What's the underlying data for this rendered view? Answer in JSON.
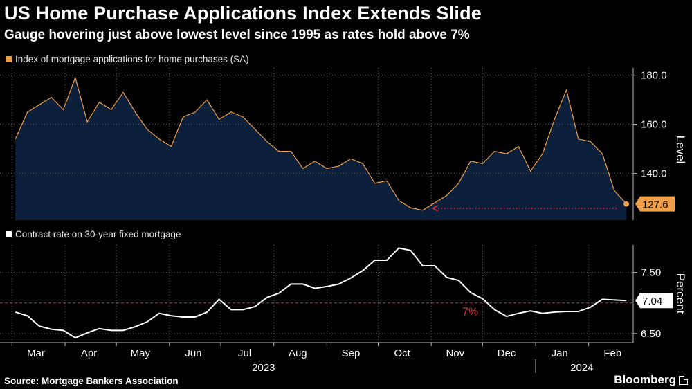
{
  "title": "US Home Purchase Applications Index Extends Slide",
  "subtitle": "Gauge hovering just above lowest level since 1995 as rates hold above 7%",
  "source": "Source: Mortgage Bankers Association",
  "brand": "Bloomberg",
  "colors": {
    "background": "#000000",
    "purchase_line": "#f0a04b",
    "purchase_fill": "#0c1f3b",
    "rate_line": "#ffffff",
    "reference": "#e0303a",
    "grid": "#666666"
  },
  "chart_data": [
    {
      "type": "area",
      "legend": "Index of mortgage applications for home purchases (SA)",
      "ylabel": "Level",
      "ylim": [
        121,
        183
      ],
      "yticks": [
        140.0,
        160.0,
        180.0
      ],
      "grid": true,
      "last_value_label": "127.6",
      "annotation": "dotted arrow pointing back to prior low",
      "x": [
        "2023-03-03",
        "2023-03-10",
        "2023-03-17",
        "2023-03-24",
        "2023-03-31",
        "2023-04-07",
        "2023-04-14",
        "2023-04-21",
        "2023-04-28",
        "2023-05-05",
        "2023-05-12",
        "2023-05-19",
        "2023-05-26",
        "2023-06-02",
        "2023-06-09",
        "2023-06-16",
        "2023-06-23",
        "2023-06-30",
        "2023-07-07",
        "2023-07-14",
        "2023-07-21",
        "2023-07-28",
        "2023-08-04",
        "2023-08-11",
        "2023-08-18",
        "2023-08-25",
        "2023-09-01",
        "2023-09-08",
        "2023-09-15",
        "2023-09-22",
        "2023-09-29",
        "2023-10-06",
        "2023-10-13",
        "2023-10-20",
        "2023-10-27",
        "2023-11-03",
        "2023-11-10",
        "2023-11-17",
        "2023-11-24",
        "2023-12-01",
        "2023-12-08",
        "2023-12-15",
        "2023-12-22",
        "2023-12-29",
        "2024-01-05",
        "2024-01-12",
        "2024-01-19",
        "2024-01-26",
        "2024-02-02",
        "2024-02-09",
        "2024-02-16",
        "2024-02-23"
      ],
      "values": [
        154,
        165,
        168,
        171,
        166,
        179,
        161,
        169,
        166,
        173,
        165,
        158,
        154,
        151,
        163,
        165,
        170,
        162,
        165,
        163,
        158,
        153,
        149,
        149,
        142,
        145,
        142,
        143,
        146,
        144,
        136,
        137,
        129,
        126,
        125,
        128,
        131,
        136,
        145,
        144,
        149,
        148,
        151,
        141,
        148,
        162,
        174,
        154,
        153,
        148,
        133,
        127.6
      ]
    },
    {
      "type": "line",
      "legend": "Contract rate on 30-year fixed mortgage",
      "ylabel": "Percent",
      "ylim": [
        6.35,
        7.95
      ],
      "yticks": [
        6.5,
        7.5
      ],
      "grid": true,
      "reference_line": {
        "value": 7.0,
        "label": "7%"
      },
      "last_value_label": "7.04",
      "x": [
        "2023-03-03",
        "2023-03-10",
        "2023-03-17",
        "2023-03-24",
        "2023-03-31",
        "2023-04-07",
        "2023-04-14",
        "2023-04-21",
        "2023-04-28",
        "2023-05-05",
        "2023-05-12",
        "2023-05-19",
        "2023-05-26",
        "2023-06-02",
        "2023-06-09",
        "2023-06-16",
        "2023-06-23",
        "2023-06-30",
        "2023-07-07",
        "2023-07-14",
        "2023-07-21",
        "2023-07-28",
        "2023-08-04",
        "2023-08-11",
        "2023-08-18",
        "2023-08-25",
        "2023-09-01",
        "2023-09-08",
        "2023-09-15",
        "2023-09-22",
        "2023-09-29",
        "2023-10-06",
        "2023-10-13",
        "2023-10-20",
        "2023-10-27",
        "2023-11-03",
        "2023-11-10",
        "2023-11-17",
        "2023-11-24",
        "2023-12-01",
        "2023-12-08",
        "2023-12-15",
        "2023-12-22",
        "2023-12-29",
        "2024-01-05",
        "2024-01-12",
        "2024-01-19",
        "2024-01-26",
        "2024-02-02",
        "2024-02-09",
        "2024-02-16",
        "2024-02-23"
      ],
      "values": [
        6.85,
        6.79,
        6.62,
        6.57,
        6.55,
        6.43,
        6.51,
        6.58,
        6.55,
        6.55,
        6.61,
        6.69,
        6.83,
        6.79,
        6.77,
        6.77,
        6.85,
        7.06,
        6.89,
        6.89,
        6.94,
        7.09,
        7.16,
        7.31,
        7.31,
        7.24,
        7.27,
        7.31,
        7.41,
        7.53,
        7.7,
        7.7,
        7.9,
        7.86,
        7.61,
        7.61,
        7.42,
        7.37,
        7.17,
        7.07,
        6.89,
        6.78,
        6.83,
        6.87,
        6.83,
        6.85,
        6.86,
        6.86,
        6.93,
        7.06,
        7.05,
        7.04
      ]
    }
  ],
  "x_axis": {
    "months": [
      {
        "label": "Mar",
        "date": "2023-03-15"
      },
      {
        "label": "Apr",
        "date": "2023-04-15"
      },
      {
        "label": "May",
        "date": "2023-05-15"
      },
      {
        "label": "Jun",
        "date": "2023-06-15"
      },
      {
        "label": "Jul",
        "date": "2023-07-15"
      },
      {
        "label": "Aug",
        "date": "2023-08-15"
      },
      {
        "label": "Sep",
        "date": "2023-09-15"
      },
      {
        "label": "Oct",
        "date": "2023-10-15"
      },
      {
        "label": "Nov",
        "date": "2023-11-15"
      },
      {
        "label": "Dec",
        "date": "2023-12-15"
      },
      {
        "label": "Jan",
        "date": "2024-01-15"
      },
      {
        "label": "Feb",
        "date": "2024-02-15"
      }
    ],
    "years": [
      {
        "label": "2023",
        "date": "2023-07-26"
      },
      {
        "label": "2024",
        "date": "2024-01-28"
      }
    ]
  }
}
